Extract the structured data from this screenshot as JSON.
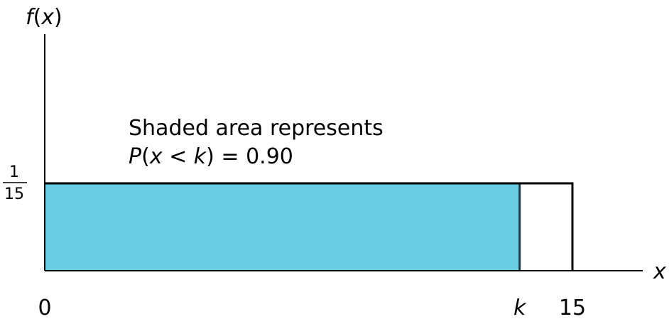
{
  "chart_data": {
    "type": "area",
    "distribution": "uniform",
    "x_min": 0,
    "x_max": 15,
    "k": 13.5,
    "density": {
      "numerator": "1",
      "denominator": "15"
    },
    "shaded_range": [
      0,
      13.5
    ],
    "shaded_color": "#68cce2",
    "ylabel": "f(x)",
    "xlabel": "x",
    "x_ticks": [
      {
        "value": 0,
        "label": "0",
        "italic": false
      },
      {
        "value": 13.5,
        "label": "k",
        "italic": true
      },
      {
        "value": 15,
        "label": "15",
        "italic": false
      }
    ],
    "annotation": {
      "line1": "Shaded area represents",
      "line2": "P(x < k) = 0.90"
    }
  }
}
